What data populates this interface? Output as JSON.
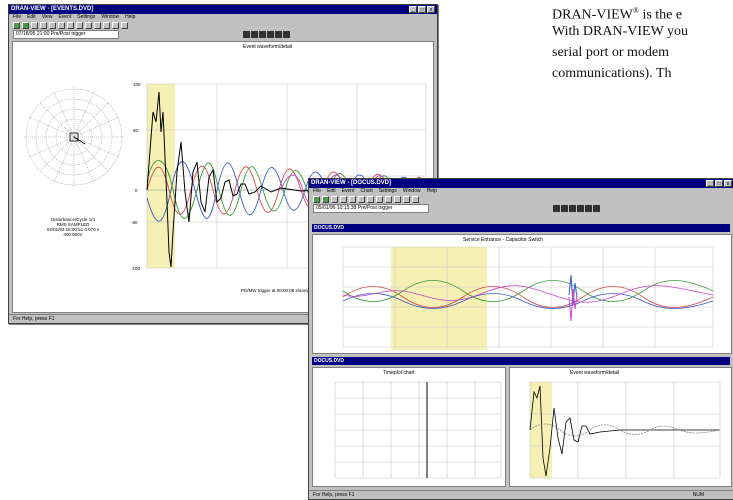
{
  "prose": {
    "line1_pre": "DRAN-VIEW",
    "line1_reg": "®",
    "line1_post": " is the e",
    "line2": "With DRAN-VIEW you",
    "line3": "serial port or modem",
    "line4": "communications). Th"
  },
  "window1": {
    "title": "DRAN-VIEW - [EVENTS.DVD]",
    "menu": [
      "File",
      "Edit",
      "View",
      "Event",
      "Settings",
      "Window",
      "Help"
    ],
    "address": "07/18/95 21:00 Pre/Post trigger",
    "chart_title": "Event waveform/detail",
    "phasor_caption": [
      "Disturbance/Cycle 1/4",
      "RMS SAMPLED",
      "02/01/93 18:00:51 0.070 s",
      "400 900V"
    ],
    "footer_readout": "PD/MW trigger at 00:00:08 s/sample",
    "status": "For Help, press F1",
    "colors": {
      "titlebar": "#000080",
      "chrome": "#c0c0c0",
      "highlight": "#f6f0b4"
    }
  },
  "window2": {
    "title": "DRAN-VIEW - [DOCUS.DVD]",
    "menu": [
      "File",
      "Edit",
      "Event",
      "Chart",
      "Settings",
      "Window",
      "Help"
    ],
    "address": "05/01/96 10:15:38 Pre/Post trigger",
    "subwindow_title": "DOCUS.DVD",
    "chart_title": "Service Entrance - Capacitor Switch",
    "lower_subwindow_title": "DOCUS.DVD",
    "timeplot_title": "Timeplot chart",
    "waveform_title": "Event waveform/detail",
    "status": "For Help, press F1",
    "status_right": "NUM"
  }
}
